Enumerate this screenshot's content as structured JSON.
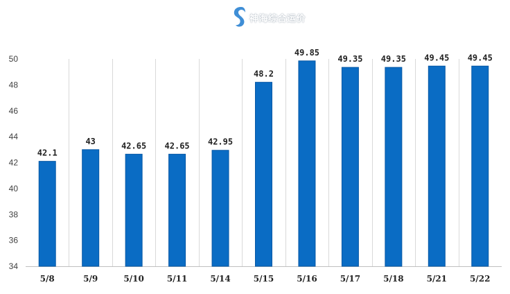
{
  "watermark": {
    "text": "神海综合运价",
    "icon": "seahorse-logo-icon",
    "color": "#1e7bd0"
  },
  "chart_data": {
    "type": "bar",
    "categories": [
      "5/8",
      "5/9",
      "5/10",
      "5/11",
      "5/14",
      "5/15",
      "5/16",
      "5/17",
      "5/18",
      "5/21",
      "5/22"
    ],
    "series": [
      {
        "values": [
          42.1,
          43,
          42.65,
          42.65,
          42.95,
          48.2,
          49.85,
          49.35,
          49.35,
          49.45,
          49.45
        ],
        "labels": [
          "42.1",
          "43",
          "42.65",
          "42.65",
          "42.95",
          "48.2",
          "49.85",
          "49.35",
          "49.35",
          "49.45",
          "49.45"
        ]
      }
    ],
    "yticks": [
      "34",
      "36",
      "38",
      "40",
      "42",
      "44",
      "46",
      "48",
      "50"
    ],
    "ylim": [
      34,
      50
    ],
    "title": "",
    "xlabel": "",
    "ylabel": "",
    "grid": "vertical",
    "legend": "none",
    "colors": {
      "bar": "#0a6cc4",
      "bar_edge": "#0858a5",
      "grid": "#d9d9d9",
      "axis": "#bfbfbf",
      "label": "#222222",
      "tick": "#404040"
    }
  }
}
